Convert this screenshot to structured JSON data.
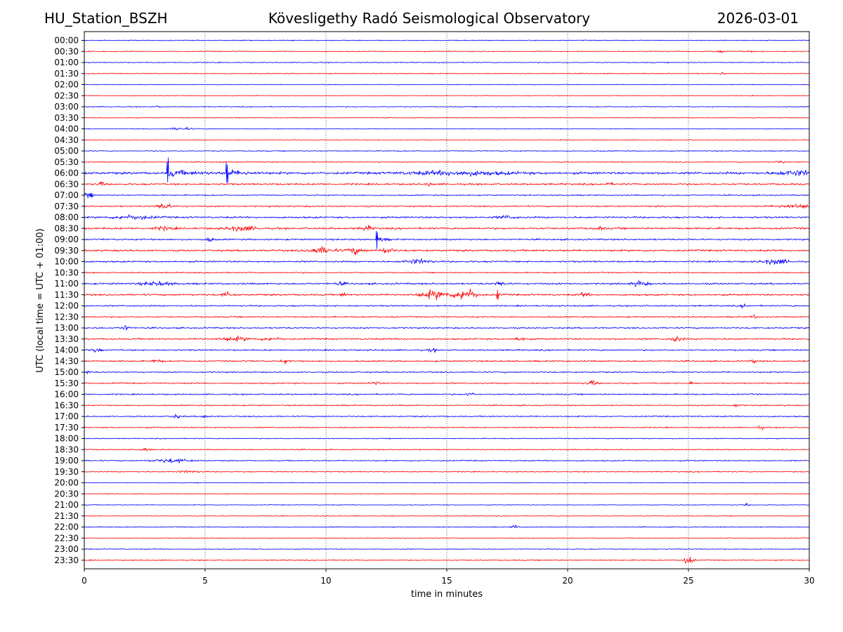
{
  "header": {
    "station": "HU_Station_BSZH",
    "observatory": "Kövesligethy Radó Seismological Observatory",
    "date": "2026-03-01"
  },
  "chart_data": {
    "type": "line",
    "title": "Kövesligethy Radó Seismological Observatory",
    "xlabel": "time in minutes",
    "ylabel": "UTC (local time = UTC + 01:00)",
    "xlim": [
      0,
      30
    ],
    "x_ticks": [
      "0",
      "5",
      "10",
      "15",
      "20",
      "25",
      "30"
    ],
    "x_tick_values": [
      0,
      5,
      10,
      15,
      20,
      25,
      30
    ],
    "grid": "vertical dotted lines at x ticks",
    "colors": {
      "even": "#0000ff",
      "odd": "#ff0000"
    },
    "rows": [
      {
        "label": "00:00",
        "color": "#0000ff",
        "noise": 0.6,
        "events": []
      },
      {
        "label": "00:30",
        "color": "#ff0000",
        "noise": 0.6,
        "events": [
          {
            "t": 26.3,
            "amp": 1.2,
            "dur": 0.6
          },
          {
            "t": 27.5,
            "amp": 0.8,
            "dur": 0.5
          }
        ]
      },
      {
        "label": "01:00",
        "color": "#0000ff",
        "noise": 0.6,
        "events": []
      },
      {
        "label": "01:30",
        "color": "#ff0000",
        "noise": 0.6,
        "events": [
          {
            "t": 26.4,
            "amp": 1.2,
            "dur": 0.3
          }
        ]
      },
      {
        "label": "02:00",
        "color": "#0000ff",
        "noise": 0.5,
        "events": []
      },
      {
        "label": "02:30",
        "color": "#ff0000",
        "noise": 0.5,
        "events": []
      },
      {
        "label": "03:00",
        "color": "#0000ff",
        "noise": 0.6,
        "events": [
          {
            "t": 3.1,
            "amp": 1.0,
            "dur": 0.3
          }
        ]
      },
      {
        "label": "03:30",
        "color": "#ff0000",
        "noise": 0.5,
        "events": []
      },
      {
        "label": "04:00",
        "color": "#0000ff",
        "noise": 0.5,
        "events": [
          {
            "t": 4.0,
            "amp": 2.0,
            "dur": 1.0
          }
        ]
      },
      {
        "label": "04:30",
        "color": "#ff0000",
        "noise": 0.5,
        "events": []
      },
      {
        "label": "05:00",
        "color": "#0000ff",
        "noise": 0.6,
        "events": []
      },
      {
        "label": "05:30",
        "color": "#ff0000",
        "noise": 0.7,
        "events": [
          {
            "t": 28.8,
            "amp": 2.0,
            "dur": 0.4
          }
        ]
      },
      {
        "label": "06:00",
        "color": "#0000ff",
        "noise": 1.6,
        "events": [
          {
            "t": 3.45,
            "amp": 16,
            "dur": 2.3,
            "spike": true
          },
          {
            "t": 5.9,
            "amp": 14,
            "dur": 1.8,
            "spike": true
          },
          {
            "t": 15.5,
            "amp": 2.5,
            "dur": 5
          },
          {
            "t": 29.5,
            "amp": 3.0,
            "dur": 2
          }
        ]
      },
      {
        "label": "06:30",
        "color": "#ff0000",
        "noise": 1.2,
        "events": [
          {
            "t": 0.7,
            "amp": 3,
            "dur": 0.3
          },
          {
            "t": 14.3,
            "amp": 2,
            "dur": 0.3
          },
          {
            "t": 21.7,
            "amp": 2.5,
            "dur": 0.3
          }
        ]
      },
      {
        "label": "07:00",
        "color": "#0000ff",
        "noise": 0.8,
        "events": [
          {
            "t": 0.2,
            "amp": 3,
            "dur": 0.5
          }
        ]
      },
      {
        "label": "07:30",
        "color": "#ff0000",
        "noise": 1.0,
        "events": [
          {
            "t": 3.3,
            "amp": 5,
            "dur": 0.6
          },
          {
            "t": 29.5,
            "amp": 2.5,
            "dur": 2
          }
        ]
      },
      {
        "label": "08:00",
        "color": "#0000ff",
        "noise": 1.2,
        "events": [
          {
            "t": 2.0,
            "amp": 2.5,
            "dur": 2
          },
          {
            "t": 17.5,
            "amp": 2,
            "dur": 1
          }
        ]
      },
      {
        "label": "08:30",
        "color": "#ff0000",
        "noise": 1.3,
        "events": [
          {
            "t": 3.3,
            "amp": 2,
            "dur": 1
          },
          {
            "t": 6.5,
            "amp": 3,
            "dur": 1.5
          },
          {
            "t": 11.7,
            "amp": 3,
            "dur": 0.5
          },
          {
            "t": 21.3,
            "amp": 2,
            "dur": 0.4
          }
        ]
      },
      {
        "label": "09:00",
        "color": "#0000ff",
        "noise": 1.1,
        "events": [
          {
            "t": 12.1,
            "amp": 12,
            "dur": 0.8,
            "spike": true
          },
          {
            "t": 5.2,
            "amp": 2.5,
            "dur": 0.4
          }
        ]
      },
      {
        "label": "09:30",
        "color": "#ff0000",
        "noise": 1.3,
        "events": [
          {
            "t": 9.8,
            "amp": 4,
            "dur": 1.2
          },
          {
            "t": 11.2,
            "amp": 4,
            "dur": 0.8
          },
          {
            "t": 12.5,
            "amp": 3,
            "dur": 0.8
          }
        ]
      },
      {
        "label": "10:00",
        "color": "#0000ff",
        "noise": 1.1,
        "events": [
          {
            "t": 13.8,
            "amp": 3,
            "dur": 1.2
          },
          {
            "t": 28.6,
            "amp": 3.5,
            "dur": 1.2
          }
        ]
      },
      {
        "label": "10:30",
        "color": "#ff0000",
        "noise": 0.8,
        "events": []
      },
      {
        "label": "11:00",
        "color": "#0000ff",
        "noise": 1.2,
        "events": [
          {
            "t": 3.0,
            "amp": 2.5,
            "dur": 1.5
          },
          {
            "t": 10.6,
            "amp": 2,
            "dur": 0.5
          },
          {
            "t": 17.2,
            "amp": 2.5,
            "dur": 0.6
          },
          {
            "t": 23.0,
            "amp": 3,
            "dur": 0.8
          }
        ]
      },
      {
        "label": "11:30",
        "color": "#ff0000",
        "noise": 1.2,
        "events": [
          {
            "t": 5.9,
            "amp": 3.5,
            "dur": 0.4
          },
          {
            "t": 10.7,
            "amp": 2.5,
            "dur": 0.3
          },
          {
            "t": 14.5,
            "amp": 5,
            "dur": 1.5
          },
          {
            "t": 15.8,
            "amp": 8,
            "dur": 1
          },
          {
            "t": 17.1,
            "amp": 7,
            "dur": 0.3,
            "spike": true
          },
          {
            "t": 20.7,
            "amp": 3,
            "dur": 0.4
          }
        ]
      },
      {
        "label": "12:00",
        "color": "#0000ff",
        "noise": 1.0,
        "events": [
          {
            "t": 27.3,
            "amp": 2.5,
            "dur": 0.3
          }
        ]
      },
      {
        "label": "12:30",
        "color": "#ff0000",
        "noise": 0.9,
        "events": [
          {
            "t": 27.7,
            "amp": 2.5,
            "dur": 0.3
          }
        ]
      },
      {
        "label": "13:00",
        "color": "#0000ff",
        "noise": 1.0,
        "events": [
          {
            "t": 1.7,
            "amp": 3,
            "dur": 0.4
          }
        ]
      },
      {
        "label": "13:30",
        "color": "#ff0000",
        "noise": 1.1,
        "events": [
          {
            "t": 6.2,
            "amp": 2.5,
            "dur": 1.5
          },
          {
            "t": 7.7,
            "amp": 2,
            "dur": 1
          },
          {
            "t": 18.0,
            "amp": 2.5,
            "dur": 0.6
          },
          {
            "t": 24.5,
            "amp": 4,
            "dur": 0.5
          }
        ]
      },
      {
        "label": "14:00",
        "color": "#0000ff",
        "noise": 1.0,
        "events": [
          {
            "t": 0.5,
            "amp": 2.5,
            "dur": 0.5
          },
          {
            "t": 14.4,
            "amp": 3,
            "dur": 0.3
          }
        ]
      },
      {
        "label": "14:30",
        "color": "#ff0000",
        "noise": 1.0,
        "events": [
          {
            "t": 3.0,
            "amp": 2,
            "dur": 0.6
          },
          {
            "t": 8.3,
            "amp": 2.5,
            "dur": 0.4
          },
          {
            "t": 27.7,
            "amp": 3,
            "dur": 0.2
          }
        ]
      },
      {
        "label": "15:00",
        "color": "#0000ff",
        "noise": 0.9,
        "events": [
          {
            "t": 0.1,
            "amp": 2.5,
            "dur": 0.3
          }
        ]
      },
      {
        "label": "15:30",
        "color": "#ff0000",
        "noise": 0.9,
        "events": [
          {
            "t": 12.0,
            "amp": 2,
            "dur": 0.5
          },
          {
            "t": 21.0,
            "amp": 3.5,
            "dur": 0.5
          },
          {
            "t": 25.1,
            "amp": 2.5,
            "dur": 0.3
          }
        ]
      },
      {
        "label": "16:00",
        "color": "#0000ff",
        "noise": 0.9,
        "events": [
          {
            "t": 16.0,
            "amp": 2.5,
            "dur": 0.4
          }
        ]
      },
      {
        "label": "16:30",
        "color": "#ff0000",
        "noise": 0.8,
        "events": [
          {
            "t": 27.0,
            "amp": 2,
            "dur": 0.4
          }
        ]
      },
      {
        "label": "17:00",
        "color": "#0000ff",
        "noise": 0.9,
        "events": [
          {
            "t": 3.8,
            "amp": 2,
            "dur": 0.5
          },
          {
            "t": 5.0,
            "amp": 3,
            "dur": 0.3
          }
        ]
      },
      {
        "label": "17:30",
        "color": "#ff0000",
        "noise": 0.8,
        "events": [
          {
            "t": 28.0,
            "amp": 2,
            "dur": 0.4
          }
        ]
      },
      {
        "label": "18:00",
        "color": "#0000ff",
        "noise": 0.6,
        "events": []
      },
      {
        "label": "18:30",
        "color": "#ff0000",
        "noise": 0.7,
        "events": [
          {
            "t": 2.5,
            "amp": 2,
            "dur": 0.4
          }
        ]
      },
      {
        "label": "19:00",
        "color": "#0000ff",
        "noise": 0.8,
        "events": [
          {
            "t": 3.6,
            "amp": 2.5,
            "dur": 1.8
          }
        ]
      },
      {
        "label": "19:30",
        "color": "#ff0000",
        "noise": 0.7,
        "events": [
          {
            "t": 4.3,
            "amp": 1.5,
            "dur": 1
          }
        ]
      },
      {
        "label": "20:00",
        "color": "#0000ff",
        "noise": 0.5,
        "events": []
      },
      {
        "label": "20:30",
        "color": "#ff0000",
        "noise": 0.5,
        "events": []
      },
      {
        "label": "21:00",
        "color": "#0000ff",
        "noise": 0.5,
        "events": [
          {
            "t": 27.4,
            "amp": 2.5,
            "dur": 0.2
          }
        ]
      },
      {
        "label": "21:30",
        "color": "#ff0000",
        "noise": 0.5,
        "events": []
      },
      {
        "label": "22:00",
        "color": "#0000ff",
        "noise": 0.6,
        "events": [
          {
            "t": 17.8,
            "amp": 3,
            "dur": 0.3
          }
        ]
      },
      {
        "label": "22:30",
        "color": "#ff0000",
        "noise": 0.5,
        "events": []
      },
      {
        "label": "23:00",
        "color": "#0000ff",
        "noise": 0.6,
        "events": []
      },
      {
        "label": "23:30",
        "color": "#ff0000",
        "noise": 0.7,
        "events": [
          {
            "t": 25.0,
            "amp": 5,
            "dur": 0.5
          }
        ]
      }
    ]
  }
}
